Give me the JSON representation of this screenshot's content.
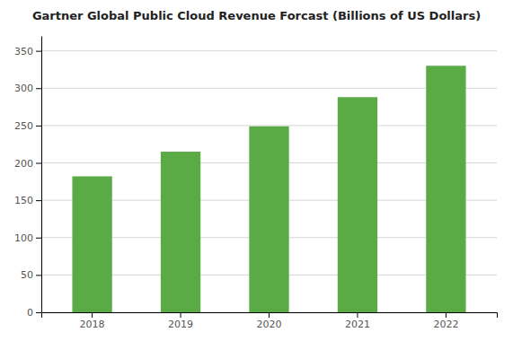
{
  "chart_data": {
    "type": "bar",
    "title": "Gartner Global Public Cloud Revenue Forcast (Billions of US Dollars)",
    "categories": [
      "2018",
      "2019",
      "2020",
      "2021",
      "2022"
    ],
    "values": [
      182,
      215,
      249,
      288,
      330
    ],
    "color": "#5aab46",
    "ylim": [
      0,
      370
    ],
    "yticks": [
      0,
      50,
      100,
      150,
      200,
      250,
      300,
      350
    ],
    "grid": true
  }
}
